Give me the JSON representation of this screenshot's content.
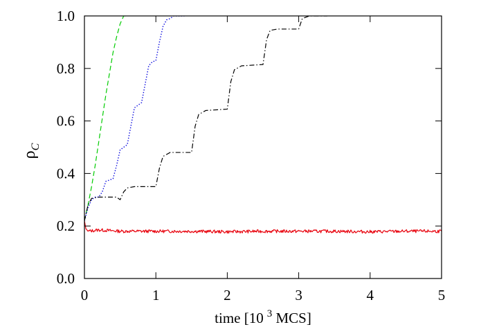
{
  "chart_data": {
    "type": "line",
    "title": "",
    "xlabel": "time [10 3 MCS]",
    "xlabel_parts": {
      "pre": "time [10",
      "sup": "3",
      "post": " MCS]"
    },
    "ylabel": "ρC",
    "ylabel_parts": {
      "main": "ρ",
      "sub": "C"
    },
    "xlim": [
      0,
      5
    ],
    "ylim": [
      0.0,
      1.0
    ],
    "xticks": [
      0,
      1,
      2,
      3,
      4,
      5
    ],
    "xtick_labels": [
      "0",
      "1",
      "2",
      "3",
      "4",
      "5"
    ],
    "yticks": [
      0.0,
      0.2,
      0.4,
      0.6,
      0.8,
      1.0
    ],
    "ytick_labels": [
      "0.0",
      "0.2",
      "0.4",
      "0.6",
      "0.8",
      "1.0"
    ],
    "grid": false,
    "series": [
      {
        "color": "#e8000b",
        "dash": "solid",
        "noisy": true,
        "points": [
          [
            0,
            0.22
          ],
          [
            0.02,
            0.19
          ],
          [
            0.05,
            0.18
          ],
          [
            0.2,
            0.185
          ],
          [
            0.5,
            0.18
          ],
          [
            1.0,
            0.18
          ],
          [
            1.5,
            0.18
          ],
          [
            2.0,
            0.178
          ],
          [
            2.5,
            0.18
          ],
          [
            3.0,
            0.18
          ],
          [
            3.5,
            0.18
          ],
          [
            4.0,
            0.178
          ],
          [
            4.5,
            0.18
          ],
          [
            5.0,
            0.18
          ]
        ]
      },
      {
        "color": "#00cc00",
        "dash": "dashed",
        "noisy": false,
        "points": [
          [
            0,
            0.22
          ],
          [
            0.05,
            0.28
          ],
          [
            0.1,
            0.35
          ],
          [
            0.15,
            0.43
          ],
          [
            0.2,
            0.52
          ],
          [
            0.25,
            0.61
          ],
          [
            0.3,
            0.7
          ],
          [
            0.35,
            0.78
          ],
          [
            0.4,
            0.86
          ],
          [
            0.45,
            0.92
          ],
          [
            0.5,
            0.97
          ],
          [
            0.55,
            1.0
          ],
          [
            0.6,
            1.0
          ]
        ]
      },
      {
        "color": "#0000dd",
        "dash": "dotted",
        "noisy": false,
        "points": [
          [
            0,
            0.22
          ],
          [
            0.05,
            0.27
          ],
          [
            0.1,
            0.3
          ],
          [
            0.15,
            0.31
          ],
          [
            0.2,
            0.31
          ],
          [
            0.25,
            0.33
          ],
          [
            0.3,
            0.37
          ],
          [
            0.4,
            0.38
          ],
          [
            0.45,
            0.43
          ],
          [
            0.5,
            0.49
          ],
          [
            0.55,
            0.5
          ],
          [
            0.6,
            0.51
          ],
          [
            0.65,
            0.58
          ],
          [
            0.7,
            0.65
          ],
          [
            0.75,
            0.66
          ],
          [
            0.8,
            0.67
          ],
          [
            0.85,
            0.74
          ],
          [
            0.9,
            0.81
          ],
          [
            0.95,
            0.825
          ],
          [
            1.0,
            0.83
          ],
          [
            1.05,
            0.9
          ],
          [
            1.1,
            0.96
          ],
          [
            1.15,
            0.985
          ],
          [
            1.2,
            0.99
          ],
          [
            1.25,
            1.0
          ],
          [
            1.3,
            1.0
          ],
          [
            1.4,
            1.0
          ]
        ]
      },
      {
        "color": "#000000",
        "dash": "dashdot",
        "noisy": false,
        "points": [
          [
            0,
            0.22
          ],
          [
            0.05,
            0.28
          ],
          [
            0.1,
            0.305
          ],
          [
            0.2,
            0.31
          ],
          [
            0.45,
            0.31
          ],
          [
            0.5,
            0.3
          ],
          [
            0.55,
            0.33
          ],
          [
            0.6,
            0.345
          ],
          [
            0.7,
            0.35
          ],
          [
            1.0,
            0.35
          ],
          [
            1.05,
            0.42
          ],
          [
            1.1,
            0.465
          ],
          [
            1.2,
            0.48
          ],
          [
            1.5,
            0.48
          ],
          [
            1.55,
            0.58
          ],
          [
            1.6,
            0.625
          ],
          [
            1.7,
            0.64
          ],
          [
            2.0,
            0.645
          ],
          [
            2.05,
            0.75
          ],
          [
            2.1,
            0.795
          ],
          [
            2.2,
            0.81
          ],
          [
            2.5,
            0.815
          ],
          [
            2.55,
            0.91
          ],
          [
            2.6,
            0.945
          ],
          [
            2.7,
            0.95
          ],
          [
            3.0,
            0.95
          ],
          [
            3.05,
            0.99
          ],
          [
            3.15,
            1.0
          ],
          [
            3.4,
            1.0
          ]
        ]
      }
    ]
  }
}
